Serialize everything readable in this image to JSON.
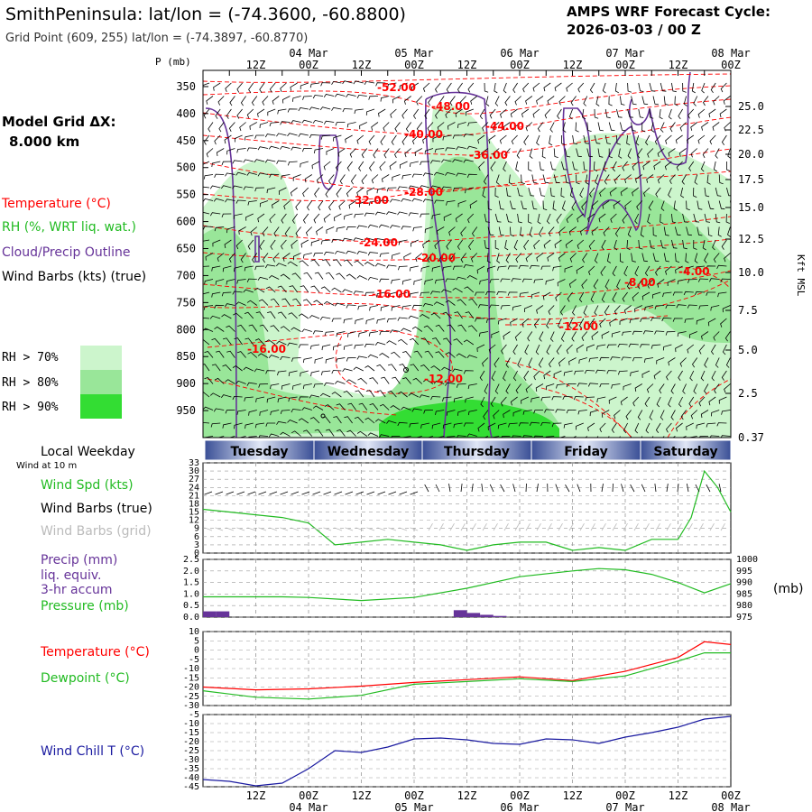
{
  "header": {
    "title": "SmithPeninsula:  lat/lon = (-74.3600, -60.8800)",
    "subtitle": "Grid Point (609, 255) lat/lon = (-74.3897, -60.8770)",
    "forecast_label": "AMPS WRF Forecast Cycle:",
    "forecast_cycle": "2026-03-03 / 00  Z"
  },
  "time_axis": {
    "top_dates": [
      "04 Mar",
      "05 Mar",
      "06 Mar",
      "07 Mar",
      "08 Mar"
    ],
    "hour_labels": [
      "12Z",
      "00Z",
      "12Z",
      "00Z",
      "12Z",
      "00Z",
      "12Z",
      "00Z",
      "12Z",
      "00Z"
    ],
    "bottom_dates": [
      "04 Mar",
      "05 Mar",
      "06 Mar",
      "07 Mar",
      "08 Mar"
    ],
    "weekday_title": "Local Weekday",
    "weekdays": [
      "Tuesday",
      "Wednesday",
      "Thursday",
      "Friday",
      "Saturday"
    ],
    "wind_height_note": "Wind at 10 m"
  },
  "legend": {
    "model_grid_label": "Model Grid ΔX:",
    "model_grid_value": "8.000 km",
    "temperature": "Temperature (°C)",
    "rh": "RH (%, WRT liq. wat.)",
    "cloud": "Cloud/Precip Outline",
    "wind_barbs": "Wind Barbs (kts) (true)",
    "rh70": "RH > 70%",
    "rh80": "RH > 80%",
    "rh90": "RH > 90%",
    "wind_spd": "Wind Spd (kts)",
    "wind_barbs_true": "Wind Barbs (true)",
    "wind_barbs_grid": "Wind Barbs (grid)",
    "precip_1": "Precip (mm)",
    "precip_2": "liq. equiv.",
    "precip_3": "3-hr accum",
    "pressure": "Pressure (mb)",
    "temp2": "Temperature (°C)",
    "dewpoint": "Dewpoint (°C)",
    "wind_chill": "Wind Chill T (°C)"
  },
  "colors": {
    "temp": "#ff0000",
    "rh70": "#ccf5cc",
    "rh80": "#99e699",
    "rh90": "#33dd33",
    "cloud": "#663399",
    "green": "#22bb22",
    "precip": "#663399",
    "windchill": "#1a1aa0",
    "grid": "#999999"
  },
  "chart_data": [
    {
      "type": "heatmap",
      "name": "time-height cross-section",
      "x_hours": [
        0,
        120
      ],
      "pressure_axis_label": "P (mb)",
      "pressure_ticks": [
        "350",
        "400",
        "450",
        "500",
        "550",
        "600",
        "650",
        "700",
        "750",
        "800",
        "850",
        "900",
        "950"
      ],
      "pressure_range": [
        320,
        1000
      ],
      "height_axis_label": "Kft MSL",
      "height_ticks": [
        "25.0",
        "22.5",
        "20.0",
        "17.5",
        "15.0",
        "12.5",
        "10.0",
        "7.5",
        "5.0",
        "2.5",
        "0.37"
      ],
      "temperature_contour_labels": [
        "-52.00",
        "-48.00",
        "-44.00",
        "-40.00",
        "-36.00",
        "-32.00",
        "-28.00",
        "-24.00",
        "-20.00",
        "-16.00",
        "-16.00",
        "-12.00",
        "-12.00",
        "-8.00",
        "-4.00"
      ]
    },
    {
      "type": "line",
      "name": "wind speed",
      "ylabel": "Wind Spd (kts)",
      "ylim": [
        0,
        33
      ],
      "y_ticks": [
        "33",
        "30",
        "27",
        "24",
        "21",
        "18",
        "15",
        "12",
        "9",
        "6",
        "3",
        "0"
      ],
      "x": [
        0,
        6,
        12,
        18,
        24,
        30,
        36,
        42,
        48,
        54,
        60,
        66,
        72,
        78,
        84,
        90,
        96,
        102,
        108,
        111,
        114,
        117,
        120
      ],
      "values": [
        16,
        15,
        14,
        13,
        11,
        3,
        4,
        5,
        4,
        3,
        1,
        3,
        4,
        4,
        1,
        2,
        1,
        5,
        5,
        13,
        30,
        24,
        15
      ]
    },
    {
      "type": "bar",
      "name": "precip",
      "ylabel": "Precip (mm)",
      "ylim": [
        0,
        2.5
      ],
      "y_ticks": [
        "2.5",
        "2.0",
        "1.5",
        "1.0",
        "0.5",
        "0.0"
      ],
      "x": [
        1.5,
        4.5,
        58.5,
        61.5,
        64.5,
        67.5
      ],
      "values": [
        0.25,
        0.25,
        0.3,
        0.18,
        0.1,
        0.05
      ]
    },
    {
      "type": "line",
      "name": "pressure",
      "ylabel": "Pressure (mb)",
      "ylim": [
        975,
        1000
      ],
      "y_ticks": [
        "1000",
        "995",
        "990",
        "985",
        "980",
        "975"
      ],
      "right_unit": "(mb)",
      "x": [
        0,
        18,
        24,
        36,
        48,
        60,
        72,
        84,
        90,
        96,
        102,
        108,
        114,
        120
      ],
      "values": [
        983.8,
        983.8,
        983.5,
        982.2,
        983.5,
        987.5,
        992.5,
        995,
        996,
        995.5,
        993.5,
        990,
        985.5,
        989.5
      ]
    },
    {
      "type": "line",
      "name": "temperature-dewpoint",
      "ylabel": "Temperature (°C)",
      "ylim": [
        -30,
        10
      ],
      "y_ticks": [
        "10",
        "5",
        "0",
        "-5",
        "-10",
        "-15",
        "-20",
        "-25",
        "-30"
      ],
      "x": [
        0,
        12,
        24,
        36,
        48,
        60,
        72,
        84,
        96,
        108,
        114,
        120
      ],
      "series": [
        {
          "name": "Temperature",
          "values": [
            -20,
            -21.5,
            -21,
            -19.5,
            -17.5,
            -16,
            -14.5,
            -16.5,
            -11.5,
            -4,
            4.5,
            3
          ]
        },
        {
          "name": "Dewpoint",
          "values": [
            -22,
            -25.5,
            -26.5,
            -24.5,
            -18.5,
            -17,
            -15.5,
            -17,
            -14,
            -6,
            -1.5,
            -1.5
          ]
        }
      ]
    },
    {
      "type": "line",
      "name": "wind chill",
      "ylabel": "Wind Chill T (°C)",
      "ylim": [
        -45,
        -5
      ],
      "y_ticks": [
        "-5",
        "-10",
        "-15",
        "-20",
        "-25",
        "-30",
        "-35",
        "-40",
        "-45"
      ],
      "x": [
        0,
        6,
        12,
        18,
        24,
        30,
        36,
        42,
        48,
        54,
        60,
        66,
        72,
        78,
        84,
        90,
        96,
        102,
        108,
        114,
        120
      ],
      "values": [
        -41,
        -42,
        -44.5,
        -43,
        -35,
        -25,
        -26,
        -23,
        -18.5,
        -18,
        -19,
        -21,
        -21.5,
        -18.5,
        -19,
        -21,
        -17.5,
        -15,
        -12,
        -7.5,
        -6
      ]
    }
  ]
}
